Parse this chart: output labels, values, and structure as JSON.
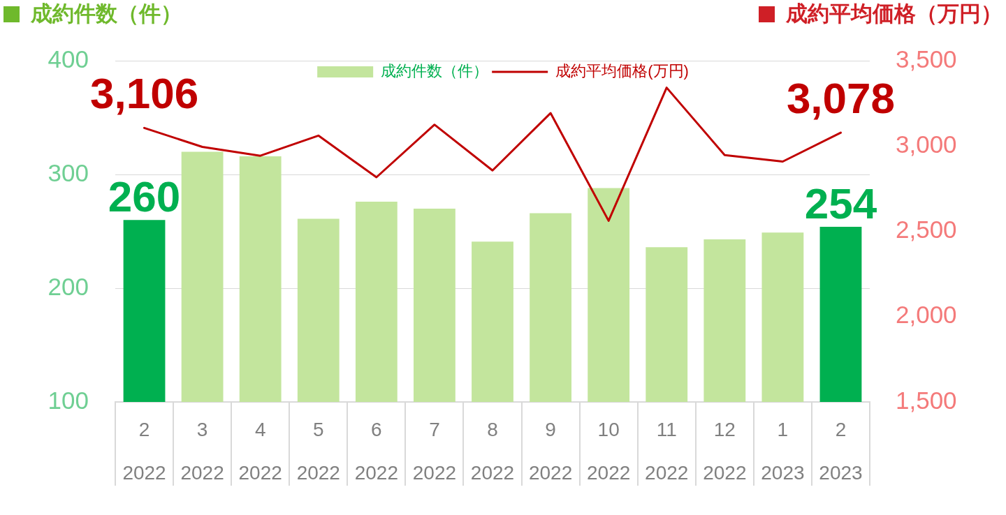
{
  "chart_data": {
    "type": "bar",
    "ylabel": "成約件数（件）",
    "y2label": "成約平均価格（万円）",
    "categories": [
      "2\n2022",
      "3\n2022",
      "4\n2022",
      "5\n2022",
      "6\n2022",
      "7\n2022",
      "8\n2022",
      "9\n2022",
      "10\n2022",
      "11\n2022",
      "12\n2022",
      "1\n2023",
      "2\n2023"
    ],
    "series": [
      {
        "name": "成約件数（件）",
        "type": "bar",
        "color": "#c3e59d",
        "colors": [
          "#00b050",
          "#c3e59d",
          "#c3e59d",
          "#c3e59d",
          "#c3e59d",
          "#c3e59d",
          "#c3e59d",
          "#c3e59d",
          "#c3e59d",
          "#c3e59d",
          "#c3e59d",
          "#c3e59d",
          "#00b050"
        ],
        "values": [
          260,
          320,
          316,
          261,
          276,
          270,
          241,
          266,
          288,
          236,
          243,
          249,
          254
        ],
        "value_labels": [
          "260",
          null,
          null,
          null,
          null,
          null,
          null,
          null,
          null,
          null,
          null,
          null,
          "254"
        ]
      },
      {
        "name": "成約平均価格(万円)",
        "type": "line",
        "axis": "y2",
        "color": "#c00000",
        "values": [
          3106,
          2995,
          2943,
          3061,
          2817,
          3125,
          2857,
          3193,
          2562,
          3342,
          2947,
          2909,
          3078
        ],
        "value_labels": [
          "3,106",
          null,
          null,
          null,
          null,
          null,
          null,
          null,
          null,
          null,
          null,
          null,
          "3,078"
        ]
      }
    ],
    "ylim": [
      100,
      400
    ],
    "yticks": [
      100,
      200,
      300,
      400
    ],
    "y2lim": [
      1500,
      3500
    ],
    "y2ticks": [
      {
        "value": 1500,
        "label": "1,500"
      },
      {
        "value": 2000,
        "label": "2,000"
      },
      {
        "value": 2500,
        "label": "2,500"
      },
      {
        "value": 3000,
        "label": "3,000"
      },
      {
        "value": 3500,
        "label": "3,500"
      }
    ],
    "grid": "y",
    "legend": "top",
    "marker": "none"
  }
}
